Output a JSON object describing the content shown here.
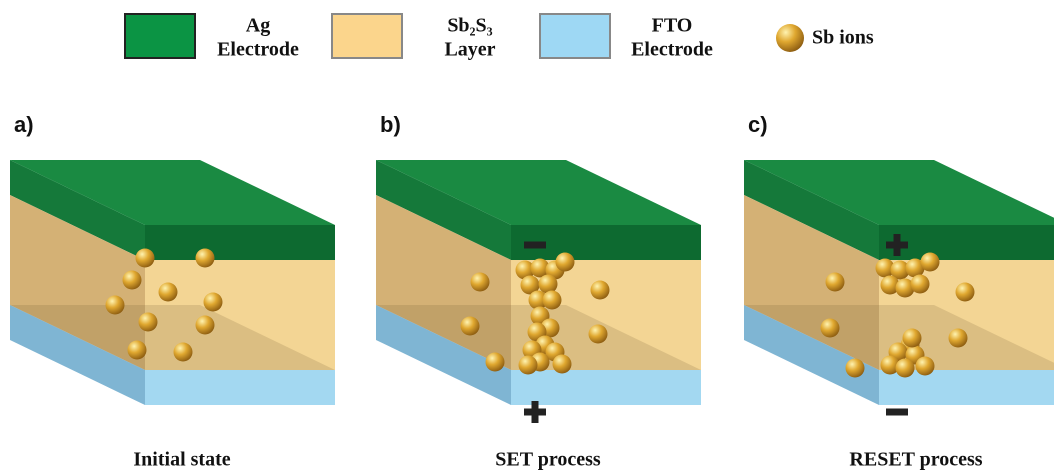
{
  "legend": {
    "items": [
      {
        "label_lines": [
          "Ag",
          "Electrode"
        ]
      },
      {
        "label_lines": [
          "Sb₂S₃",
          "Layer"
        ]
      },
      {
        "label_lines": [
          "FTO",
          "Electrode"
        ]
      },
      {
        "label": "Sb ions"
      }
    ]
  },
  "panels": [
    {
      "label": "a)",
      "caption": "Initial state"
    },
    {
      "label": "b)",
      "caption": "SET process"
    },
    {
      "label": "c)",
      "caption": "RESET process"
    }
  ]
}
